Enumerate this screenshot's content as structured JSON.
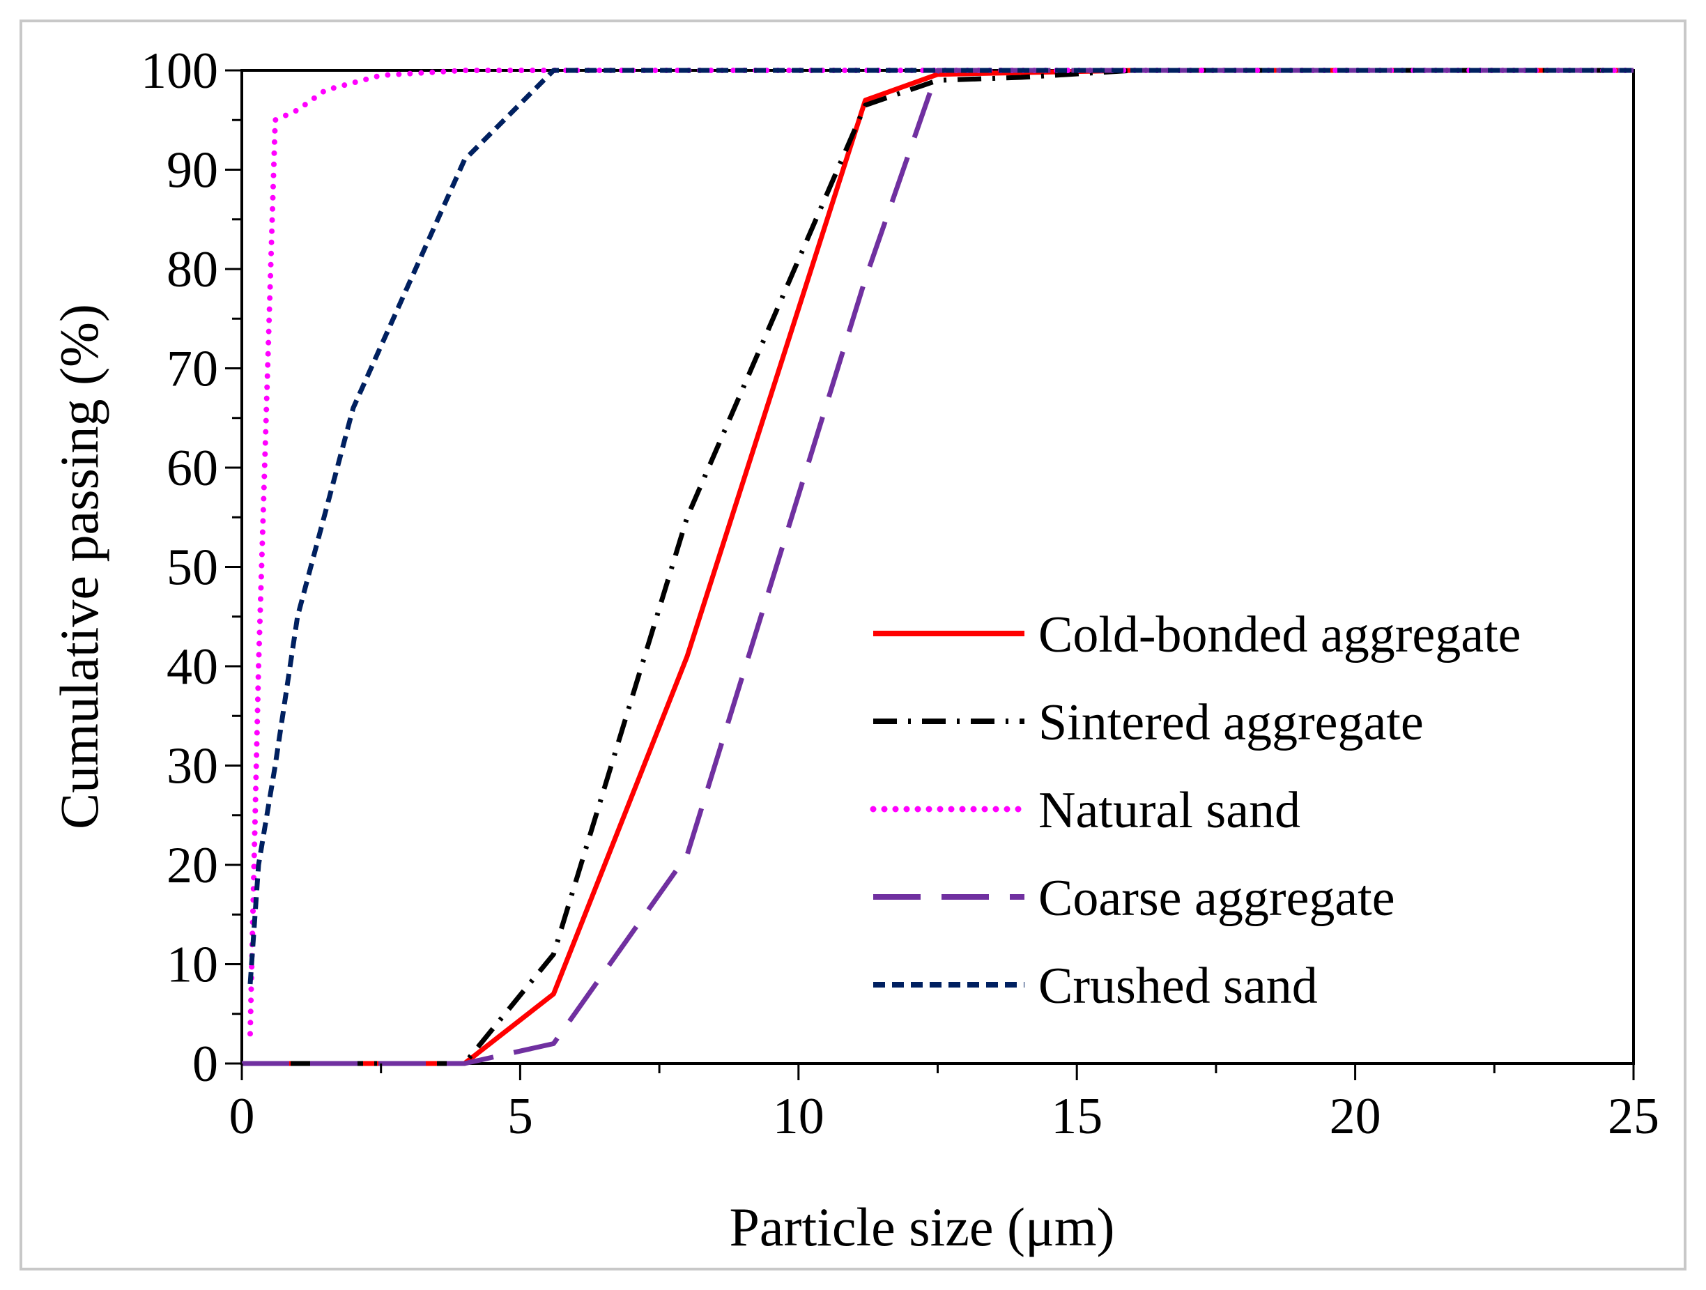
{
  "chart_data": {
    "type": "line",
    "title": "",
    "xlabel": "Particle size (μm)",
    "ylabel": "Cumulative passing (%)",
    "xlim": [
      0,
      25
    ],
    "ylim": [
      0,
      100
    ],
    "xticks": [
      0,
      5,
      10,
      15,
      20,
      25
    ],
    "yticks": [
      0,
      10,
      20,
      30,
      40,
      50,
      60,
      70,
      80,
      90,
      100
    ],
    "xtick_labels": [
      "0",
      "5",
      "10",
      "15",
      "20",
      "25"
    ],
    "ytick_labels": [
      "0",
      "10",
      "20",
      "30",
      "40",
      "50",
      "60",
      "70",
      "80",
      "90",
      "100"
    ],
    "grid": false,
    "legend_position": "right-center",
    "series": [
      {
        "name": "Cold-bonded aggregate",
        "color": "#ff0000",
        "dash": "solid",
        "x": [
          0,
          0.6,
          2.4,
          4.0,
          5.6,
          8.0,
          11.2,
          12.5,
          16,
          25
        ],
        "y": [
          0,
          0,
          0,
          0,
          7,
          41,
          97,
          99.6,
          100,
          100
        ]
      },
      {
        "name": "Sintered aggregate",
        "color": "#000000",
        "dash": "dashdot",
        "x": [
          0,
          0.6,
          2.4,
          4.0,
          5.6,
          8.0,
          11.2,
          12.5,
          14,
          16,
          25
        ],
        "y": [
          0,
          0,
          0,
          0,
          11,
          55,
          96.5,
          99,
          99.3,
          100,
          100
        ]
      },
      {
        "name": "Natural sand",
        "color": "#ff00ff",
        "dash": "dotted",
        "x": [
          0.15,
          0.3,
          0.6,
          1.0,
          1.5,
          2.5,
          4.0,
          25
        ],
        "y": [
          3,
          40,
          95,
          96,
          98,
          99.5,
          100,
          100
        ]
      },
      {
        "name": "Coarse aggregate",
        "color": "#7030a0",
        "dash": "longdash",
        "x": [
          0,
          4.0,
          5.6,
          8.0,
          11.2,
          12.5,
          16,
          25
        ],
        "y": [
          0,
          0,
          2,
          21,
          79,
          100,
          100,
          100
        ]
      },
      {
        "name": "Crushed sand",
        "color": "#002060",
        "dash": "shortdash",
        "x": [
          0.15,
          0.3,
          0.6,
          1.0,
          2.0,
          4.0,
          5.6,
          25
        ],
        "y": [
          8,
          20,
          30,
          45,
          66,
          91,
          100,
          100
        ]
      }
    ]
  }
}
